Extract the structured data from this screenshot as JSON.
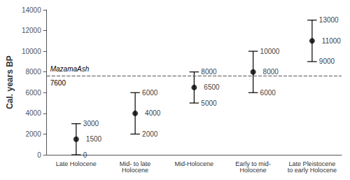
{
  "chart_data": {
    "type": "errorbar",
    "categories": [
      "Late Holocene",
      "Mid- to late\nHolocene",
      "Mid-Holocene",
      "Early to mid-\nHolocene",
      "Late Pleistocene\nto early Holocene"
    ],
    "values": [
      1500,
      4000,
      6500,
      8000,
      11000
    ],
    "lower": [
      0,
      2000,
      5000,
      6000,
      9000
    ],
    "upper": [
      3000,
      6000,
      8000,
      10000,
      13000
    ],
    "data_labels": true,
    "color": "#000000",
    "reference_line": {
      "value": 7600,
      "label": "MazamaAsh",
      "value_label": "7600",
      "color": "#555555",
      "line_style": "dashed"
    },
    "ylabel": "Cal. years BP",
    "ylim": [
      0,
      14000
    ],
    "yticks": [
      0,
      2000,
      4000,
      6000,
      8000,
      10000,
      12000,
      14000
    ],
    "grid": false
  }
}
